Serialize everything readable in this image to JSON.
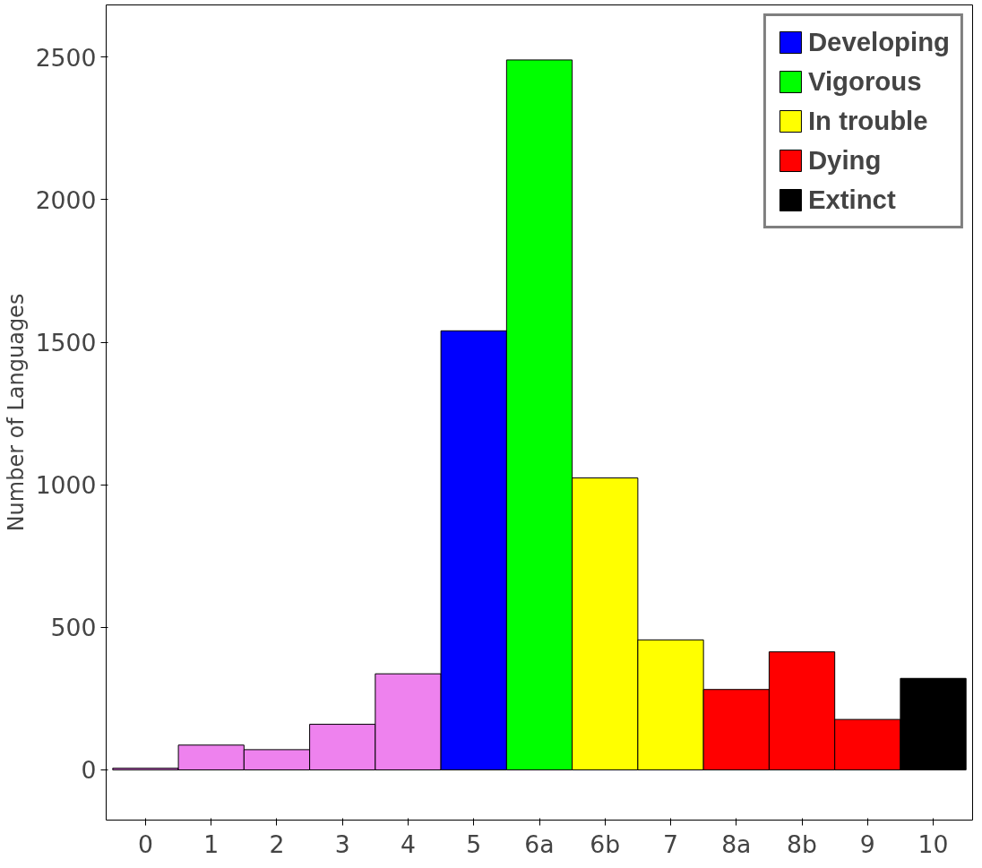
{
  "chart_data": {
    "type": "bar",
    "ylabel": "Number of Languages",
    "categories": [
      "0",
      "1",
      "2",
      "3",
      "4",
      "5",
      "6a",
      "6b",
      "7",
      "8a",
      "8b",
      "9",
      "10"
    ],
    "series": [
      {
        "color": "#ee82ee",
        "values": [
          6,
          87,
          71,
          160,
          337,
          null,
          null,
          null,
          null,
          null,
          null,
          null,
          null
        ]
      },
      {
        "name": "Developing",
        "color": "#0000ff",
        "values": [
          null,
          null,
          null,
          null,
          null,
          1540,
          null,
          null,
          null,
          null,
          null,
          null,
          null
        ]
      },
      {
        "name": "Vigorous",
        "color": "#00ff00",
        "values": [
          null,
          null,
          null,
          null,
          null,
          null,
          2490,
          null,
          null,
          null,
          null,
          null,
          null
        ]
      },
      {
        "name": "In trouble",
        "color": "#ffff00",
        "values": [
          null,
          null,
          null,
          null,
          null,
          null,
          null,
          1024,
          456,
          null,
          null,
          null,
          null
        ]
      },
      {
        "name": "Dying",
        "color": "#ff0000",
        "values": [
          null,
          null,
          null,
          null,
          null,
          null,
          null,
          null,
          null,
          282,
          414,
          177,
          null
        ]
      },
      {
        "name": "Extinct",
        "color": "#000000",
        "values": [
          null,
          null,
          null,
          null,
          null,
          null,
          null,
          null,
          null,
          null,
          null,
          null,
          321
        ]
      }
    ],
    "ylim": [
      -176,
      2683
    ],
    "yticks": [
      0,
      500,
      1000,
      1500,
      2000,
      2500
    ],
    "grid": false,
    "legend": "top right"
  }
}
